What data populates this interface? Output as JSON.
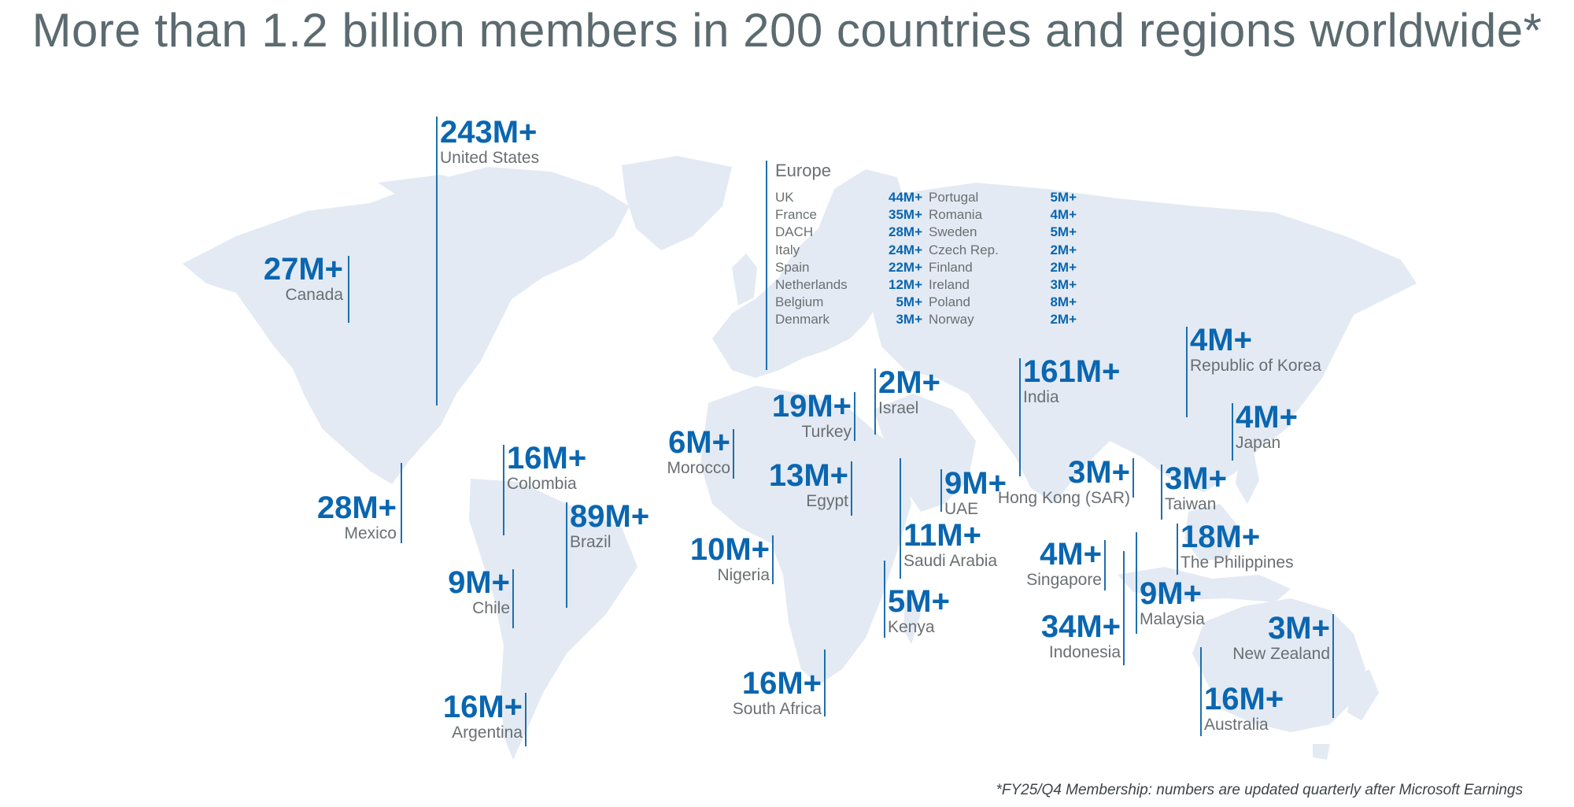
{
  "title": "More than 1.2 billion members in 200 countries and regions worldwide*",
  "footnote": "*FY25/Q4 Membership: numbers are updated quarterly after Microsoft Earnings",
  "colors": {
    "value": "#0a66b0",
    "label": "#6a6f72",
    "title": "#5b6b70",
    "land": "#e3eaf3",
    "leader": "#1e6fae"
  },
  "regions": [
    {
      "id": "united-states",
      "name": "United States",
      "value": "243M+"
    },
    {
      "id": "canada",
      "name": "Canada",
      "value": "27M+"
    },
    {
      "id": "mexico",
      "name": "Mexico",
      "value": "28M+"
    },
    {
      "id": "colombia",
      "name": "Colombia",
      "value": "16M+"
    },
    {
      "id": "brazil",
      "name": "Brazil",
      "value": "89M+"
    },
    {
      "id": "chile",
      "name": "Chile",
      "value": "9M+"
    },
    {
      "id": "argentina",
      "name": "Argentina",
      "value": "16M+"
    },
    {
      "id": "morocco",
      "name": "Morocco",
      "value": "6M+"
    },
    {
      "id": "turkey",
      "name": "Turkey",
      "value": "19M+"
    },
    {
      "id": "israel",
      "name": "Israel",
      "value": "2M+"
    },
    {
      "id": "egypt",
      "name": "Egypt",
      "value": "13M+"
    },
    {
      "id": "uae",
      "name": "UAE",
      "value": "9M+"
    },
    {
      "id": "nigeria",
      "name": "Nigeria",
      "value": "10M+"
    },
    {
      "id": "saudi-arabia",
      "name": "Saudi Arabia",
      "value": "11M+"
    },
    {
      "id": "kenya",
      "name": "Kenya",
      "value": "5M+"
    },
    {
      "id": "south-africa",
      "name": "South Africa",
      "value": "16M+"
    },
    {
      "id": "india",
      "name": "India",
      "value": "161M+"
    },
    {
      "id": "hong-kong",
      "name": "Hong Kong (SAR)",
      "value": "3M+"
    },
    {
      "id": "singapore",
      "name": "Singapore",
      "value": "4M+"
    },
    {
      "id": "indonesia",
      "name": "Indonesia",
      "value": "34M+"
    },
    {
      "id": "malaysia",
      "name": "Malaysia",
      "value": "9M+"
    },
    {
      "id": "korea",
      "name": "Republic of Korea",
      "value": "4M+"
    },
    {
      "id": "japan",
      "name": "Japan",
      "value": "4M+"
    },
    {
      "id": "taiwan",
      "name": "Taiwan",
      "value": "3M+"
    },
    {
      "id": "philippines",
      "name": "The Philippines",
      "value": "18M+"
    },
    {
      "id": "new-zealand",
      "name": "New Zealand",
      "value": "3M+"
    },
    {
      "id": "australia",
      "name": "Australia",
      "value": "16M+"
    }
  ],
  "europe": {
    "title": "Europe",
    "countries": [
      {
        "name": "UK",
        "value": "44M+"
      },
      {
        "name": "France",
        "value": "35M+"
      },
      {
        "name": "DACH",
        "value": "28M+"
      },
      {
        "name": "Italy",
        "value": "24M+"
      },
      {
        "name": "Spain",
        "value": "22M+"
      },
      {
        "name": "Netherlands",
        "value": "12M+"
      },
      {
        "name": "Belgium",
        "value": "5M+"
      },
      {
        "name": "Denmark",
        "value": "3M+"
      },
      {
        "name": "Portugal",
        "value": "5M+"
      },
      {
        "name": "Romania",
        "value": "4M+"
      },
      {
        "name": "Sweden",
        "value": "5M+"
      },
      {
        "name": "Czech Rep.",
        "value": "2M+"
      },
      {
        "name": "Finland",
        "value": "2M+"
      },
      {
        "name": "Ireland",
        "value": "3M+"
      },
      {
        "name": "Poland",
        "value": "8M+"
      },
      {
        "name": "Norway",
        "value": "2M+"
      }
    ]
  }
}
